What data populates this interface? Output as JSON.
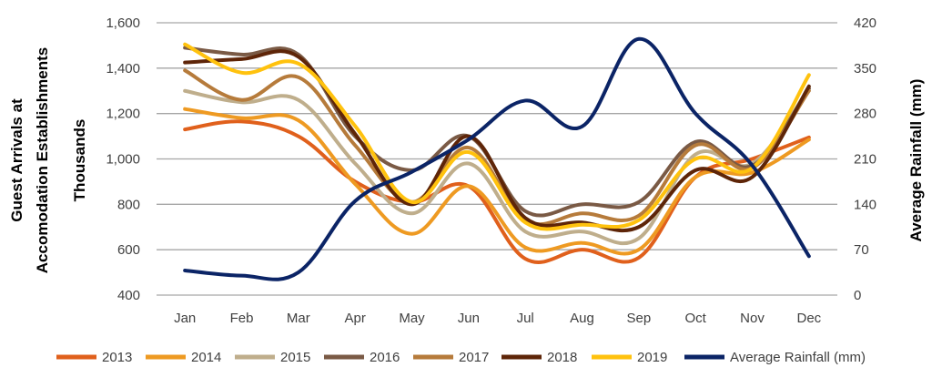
{
  "chart_data": {
    "type": "line",
    "categories": [
      "Jan",
      "Feb",
      "Mar",
      "Apr",
      "May",
      "Jun",
      "Jul",
      "Aug",
      "Sep",
      "Oct",
      "Nov",
      "Dec"
    ],
    "ylabel": [
      "Guest Arrivals at",
      "Accomodation Establishments",
      "Thousands"
    ],
    "y2label": "Average Rainfall (mm)",
    "ylim": [
      400,
      1600
    ],
    "y2lim": [
      0,
      420
    ],
    "yticks": [
      "400",
      "600",
      "800",
      "1,000",
      "1,200",
      "1,400",
      "1,600"
    ],
    "y2ticks": [
      "0",
      "70",
      "140",
      "210",
      "280",
      "350",
      "420"
    ],
    "grid": true,
    "legend_position": "bottom",
    "series": [
      {
        "name": "2013",
        "axis": "left",
        "color": "#E0601C",
        "values": [
          1130,
          1165,
          1100,
          900,
          810,
          880,
          560,
          600,
          565,
          920,
          1000,
          1095
        ]
      },
      {
        "name": "2014",
        "axis": "left",
        "color": "#EE9A22",
        "values": [
          1220,
          1180,
          1170,
          890,
          670,
          880,
          610,
          630,
          600,
          920,
          940,
          1085
        ]
      },
      {
        "name": "2015",
        "axis": "left",
        "color": "#BFAE8C",
        "values": [
          1300,
          1250,
          1260,
          980,
          760,
          980,
          680,
          680,
          650,
          1020,
          980,
          1310
        ]
      },
      {
        "name": "2016",
        "axis": "left",
        "color": "#7A5A45",
        "values": [
          1490,
          1460,
          1460,
          1100,
          950,
          1100,
          770,
          800,
          810,
          1075,
          970,
          1310
        ]
      },
      {
        "name": "2017",
        "axis": "left",
        "color": "#B67B3B",
        "values": [
          1390,
          1260,
          1360,
          1060,
          810,
          1050,
          730,
          760,
          750,
          1060,
          960,
          1300
        ]
      },
      {
        "name": "2018",
        "axis": "left",
        "color": "#5E2508",
        "values": [
          1425,
          1440,
          1450,
          1110,
          800,
          1100,
          740,
          720,
          700,
          950,
          920,
          1320
        ]
      },
      {
        "name": "2019",
        "axis": "left",
        "color": "#FFC20E",
        "values": [
          1505,
          1380,
          1420,
          1145,
          810,
          1030,
          720,
          710,
          730,
          1000,
          960,
          1370
        ]
      },
      {
        "name": "Average Rainfall (mm)",
        "axis": "right",
        "color": "#0B2466",
        "values": [
          38,
          30,
          35,
          145,
          190,
          240,
          300,
          260,
          395,
          280,
          200,
          60
        ]
      }
    ]
  }
}
